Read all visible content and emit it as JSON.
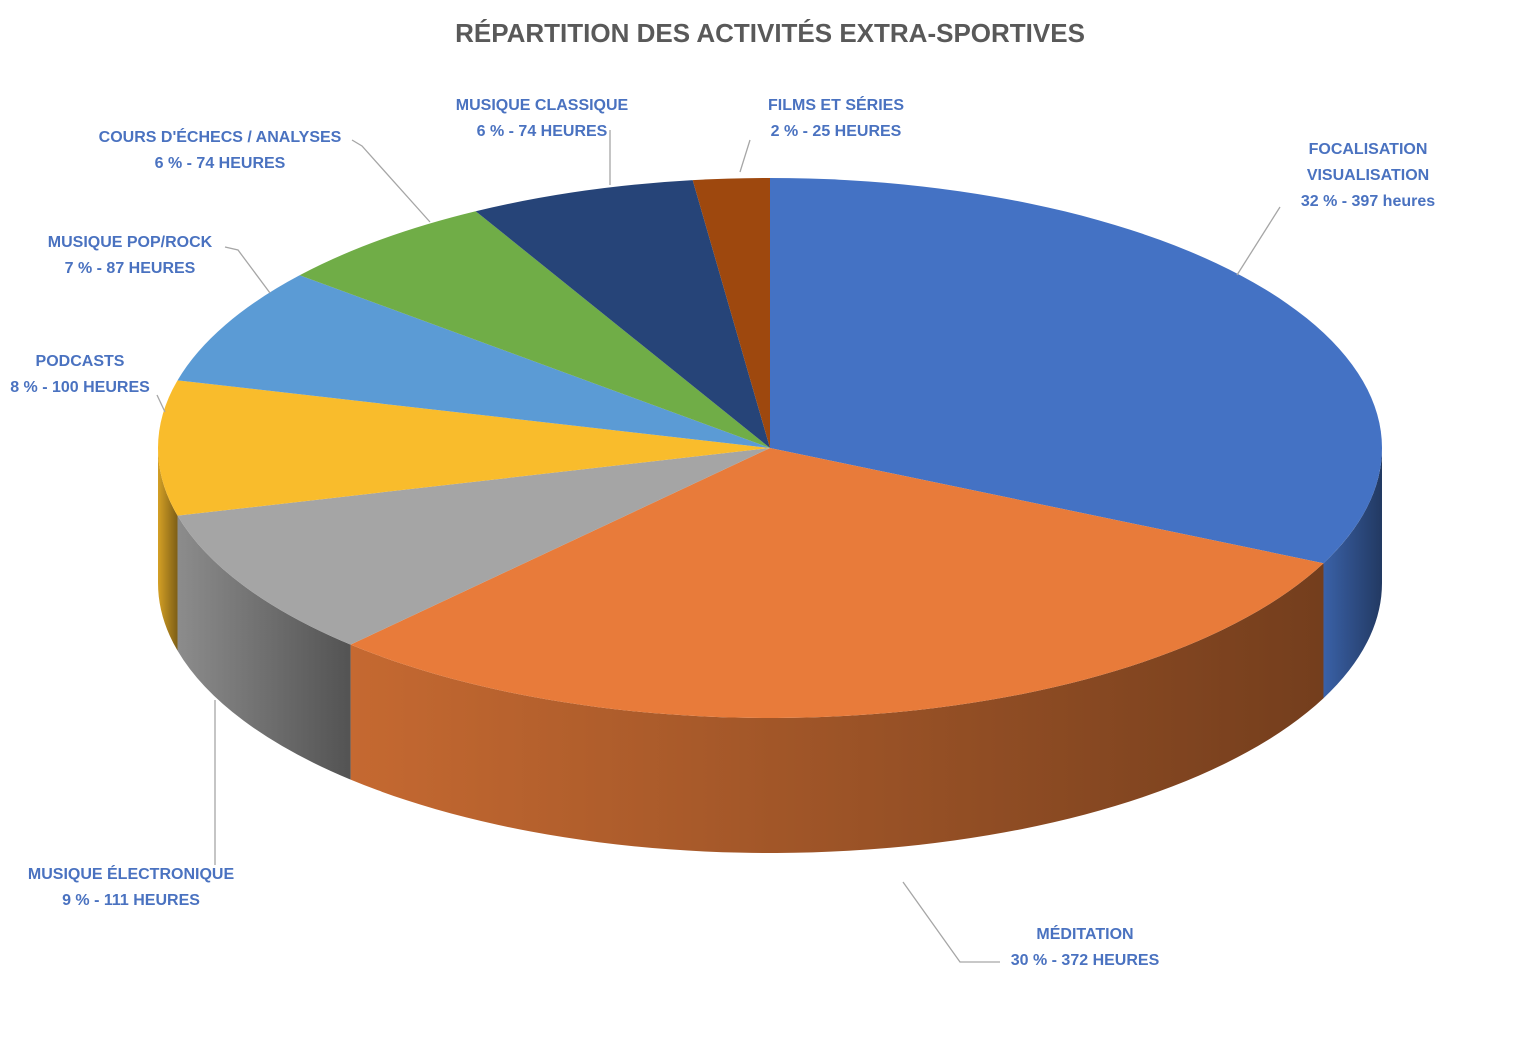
{
  "chart_data": {
    "type": "pie",
    "title": "RÉPARTITION DES ACTIVITÉS EXTRA-SPORTIVES",
    "categories": [
      "FOCALISATION VISUALISATION",
      "MÉDITATION",
      "MUSIQUE ÉLECTRONIQUE",
      "PODCASTS",
      "MUSIQUE POP/ROCK",
      "COURS D'ÉCHECS / ANALYSES",
      "MUSIQUE CLASSIQUE",
      "FILMS ET SÉRIES"
    ],
    "values": [
      397,
      372,
      111,
      100,
      87,
      74,
      74,
      25
    ],
    "value_labels": [
      "32 % - 397 heures",
      "30 % - 372 HEURES",
      "9 % - 111 HEURES",
      "8 % - 100 HEURES",
      "7 % - 87 HEURES",
      "6 % - 74 HEURES",
      "6 % - 74 HEURES",
      "2 % - 25 HEURES"
    ],
    "colors": [
      "#4472c4",
      "#e87b3a",
      "#a5a5a5",
      "#f9bc2c",
      "#5b9bd5",
      "#70ad47",
      "#264478",
      "#9e480e"
    ]
  }
}
